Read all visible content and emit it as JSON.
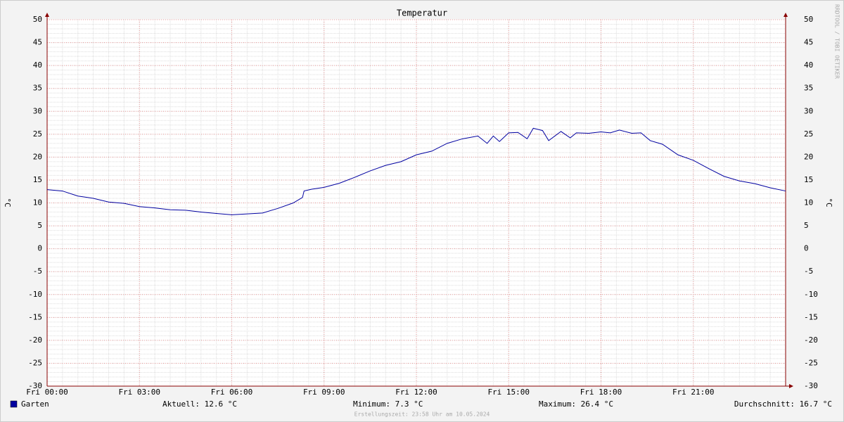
{
  "chart_data": {
    "type": "line",
    "title": "Temperatur",
    "y_label": "°C",
    "x": [
      0,
      0.5,
      1,
      1.5,
      2,
      2.5,
      3,
      3.5,
      4,
      4.5,
      5,
      5.5,
      6,
      6.5,
      7,
      7.5,
      8,
      8.3,
      8.35,
      8.6,
      9,
      9.5,
      10,
      10.5,
      11,
      11.5,
      12,
      12.5,
      13,
      13.5,
      14,
      14.3,
      14.5,
      14.7,
      15,
      15.3,
      15.6,
      15.8,
      16.1,
      16.3,
      16.7,
      17,
      17.2,
      17.6,
      18,
      18.3,
      18.6,
      19,
      19.3,
      19.6,
      20,
      20.5,
      21,
      21.5,
      22,
      22.5,
      23,
      23.5,
      24
    ],
    "series": [
      {
        "name": "Garten",
        "color": "#0000a0",
        "values": [
          12.9,
          12.6,
          11.5,
          11.0,
          10.2,
          9.9,
          9.2,
          8.9,
          8.5,
          8.4,
          8.0,
          7.7,
          7.4,
          7.6,
          7.8,
          8.8,
          10.0,
          11.2,
          12.6,
          13.0,
          13.4,
          14.3,
          15.6,
          17.0,
          18.2,
          19.0,
          20.5,
          21.3,
          23.0,
          24.0,
          24.6,
          23.0,
          24.6,
          23.4,
          25.3,
          25.4,
          24.0,
          26.3,
          25.8,
          23.6,
          25.6,
          24.2,
          25.3,
          25.2,
          25.5,
          25.3,
          25.9,
          25.2,
          25.3,
          23.6,
          22.8,
          20.5,
          19.3,
          17.5,
          15.8,
          14.8,
          14.2,
          13.3,
          12.6
        ]
      }
    ],
    "xlim": [
      0,
      24
    ],
    "xticks": [
      {
        "value": 0,
        "label": "Fri 00:00"
      },
      {
        "value": 3,
        "label": "Fri 03:00"
      },
      {
        "value": 6,
        "label": "Fri 06:00"
      },
      {
        "value": 9,
        "label": "Fri 09:00"
      },
      {
        "value": 12,
        "label": "Fri 12:00"
      },
      {
        "value": 15,
        "label": "Fri 15:00"
      },
      {
        "value": 18,
        "label": "Fri 18:00"
      },
      {
        "value": 21,
        "label": "Fri 21:00"
      }
    ],
    "ylim": [
      -30,
      50
    ],
    "yticks": [
      -30,
      -25,
      -20,
      -15,
      -10,
      -5,
      0,
      5,
      10,
      15,
      20,
      25,
      30,
      35,
      40,
      45,
      50
    ],
    "grid": true,
    "summary": [
      "Aktuell: 12.6 °C",
      "Minimum: 7.3 °C",
      "Maximum: 26.4 °C",
      "Durchschnitt: 16.7 °C"
    ],
    "footer": "Erstellungszeit: 23:58 Uhr am 10.05.2024",
    "watermark": "RRDTOOL / TOBI OETIKER"
  }
}
